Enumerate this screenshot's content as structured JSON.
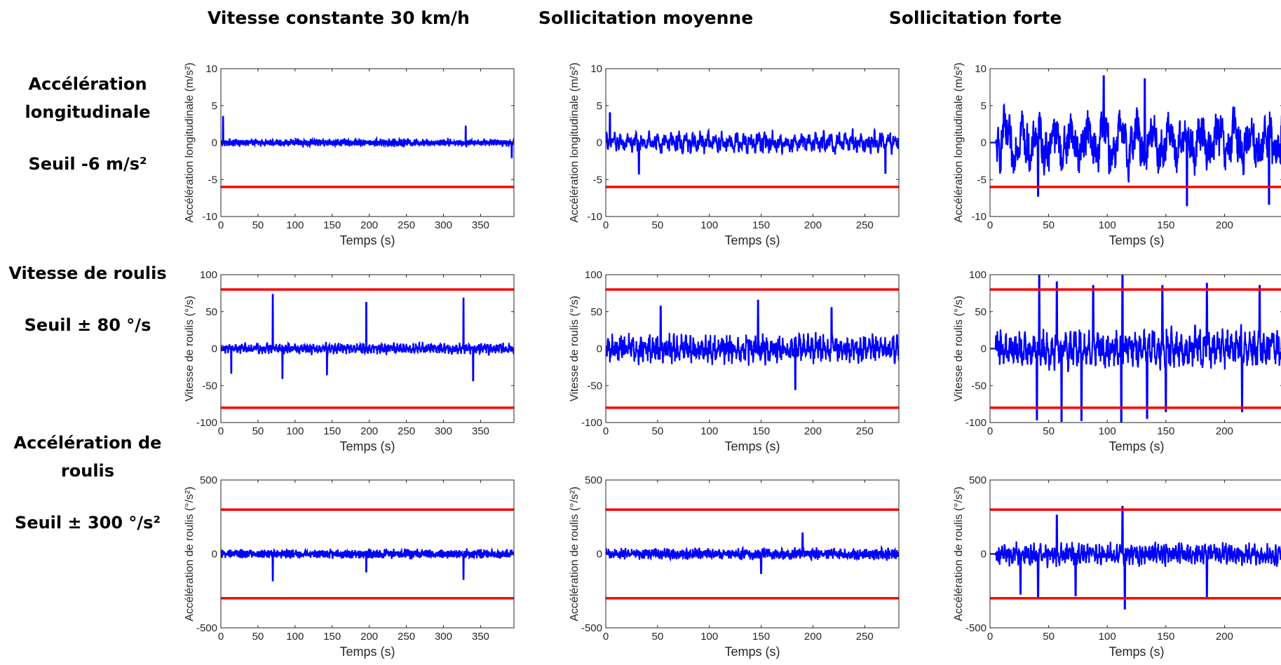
{
  "columns": [
    {
      "title": "Vitesse constante 30 km/h"
    },
    {
      "title": "Sollicitation moyenne"
    },
    {
      "title": "Sollicitation forte"
    }
  ],
  "rows": [
    {
      "label_line1": "Accélération",
      "label_line2": "longitudinale",
      "threshold_text": "Seuil -6 m/s²"
    },
    {
      "label_line1": "Vitesse de roulis",
      "label_line2": "",
      "threshold_text": "Seuil ± 80 °/s"
    },
    {
      "label_line1": "Accélération de",
      "label_line2": "roulis",
      "threshold_text": "Seuil ± 300 °/s²"
    }
  ],
  "colors": {
    "signal": "#0000ff",
    "threshold": "#ff0000",
    "axis": "#262626"
  },
  "chart_data": [
    {
      "id": "acc-long-const",
      "type": "line",
      "xlabel": "Temps (s)",
      "ylabel": "Accélération longitudinale (m/s²)",
      "xlim": [
        0,
        395
      ],
      "ylim": [
        -10,
        10
      ],
      "xticks": [
        0,
        50,
        100,
        150,
        200,
        250,
        300,
        350
      ],
      "yticks": [
        -10,
        -5,
        0,
        5,
        10
      ],
      "thresholds": [
        -6
      ],
      "signal": {
        "duration": 395,
        "amplitude": 0.55,
        "freq": 2.2,
        "spikes": [
          [
            3,
            3.5
          ],
          [
            330,
            2.2
          ],
          [
            392,
            -2
          ]
        ]
      }
    },
    {
      "id": "acc-long-moy",
      "type": "line",
      "xlabel": "Temps (s)",
      "ylabel": "Accélération longitudinale (m/s²)",
      "xlim": [
        0,
        283
      ],
      "ylim": [
        -10,
        10
      ],
      "xticks": [
        0,
        50,
        100,
        150,
        200,
        250
      ],
      "yticks": [
        -10,
        -5,
        0,
        5,
        10
      ],
      "thresholds": [
        -6
      ],
      "signal": {
        "duration": 283,
        "amplitude": 1.6,
        "freq": 0.9,
        "spikes": [
          [
            4,
            4
          ],
          [
            32,
            -4.2
          ],
          [
            270,
            -4.1
          ]
        ]
      }
    },
    {
      "id": "acc-long-forte",
      "type": "line",
      "xlabel": "Temps (s)",
      "ylabel": "Accélération longitudinale (m/s²)",
      "xlim": [
        0,
        250
      ],
      "ylim": [
        -10,
        10
      ],
      "xticks": [
        0,
        50,
        100,
        150,
        200
      ],
      "yticks": [
        -10,
        -5,
        0,
        5,
        10
      ],
      "thresholds": [
        -6
      ],
      "signal": {
        "duration": 250,
        "amplitude": 4.5,
        "freq": 0.45,
        "start": 5,
        "spikes": [
          [
            97,
            9
          ],
          [
            41,
            -7.2
          ],
          [
            168,
            -8.5
          ],
          [
            238,
            -8.3
          ],
          [
            132,
            8.6
          ]
        ]
      }
    },
    {
      "id": "roll-rate-const",
      "type": "line",
      "xlabel": "Temps (s)",
      "ylabel": "Vitesse de roulis (°/s)",
      "xlim": [
        0,
        395
      ],
      "ylim": [
        -100,
        100
      ],
      "xticks": [
        0,
        50,
        100,
        150,
        200,
        250,
        300,
        350
      ],
      "yticks": [
        -100,
        -50,
        0,
        50,
        100
      ],
      "thresholds": [
        80,
        -80
      ],
      "signal": {
        "duration": 395,
        "amplitude": 8,
        "freq": 1.5,
        "spikes": [
          [
            70,
            73
          ],
          [
            196,
            62
          ],
          [
            327,
            68
          ],
          [
            83,
            -40
          ],
          [
            340,
            -43
          ],
          [
            14,
            -33
          ],
          [
            143,
            -35
          ]
        ]
      }
    },
    {
      "id": "roll-rate-moy",
      "type": "line",
      "xlabel": "Temps (s)",
      "ylabel": "Vitesse de roulis (°/s)",
      "xlim": [
        0,
        283
      ],
      "ylim": [
        -100,
        100
      ],
      "xticks": [
        0,
        50,
        100,
        150,
        200,
        250
      ],
      "yticks": [
        -100,
        -50,
        0,
        50,
        100
      ],
      "thresholds": [
        80,
        -80
      ],
      "signal": {
        "duration": 283,
        "amplitude": 22,
        "freq": 1.6,
        "spikes": [
          [
            147,
            65
          ],
          [
            183,
            -55
          ],
          [
            53,
            57
          ],
          [
            218,
            55
          ]
        ]
      }
    },
    {
      "id": "roll-rate-forte",
      "type": "line",
      "xlabel": "Temps (s)",
      "ylabel": "Vitesse de roulis (°/s)",
      "xlim": [
        0,
        250
      ],
      "ylim": [
        -100,
        100
      ],
      "xticks": [
        0,
        50,
        100,
        150,
        200
      ],
      "yticks": [
        -100,
        -50,
        0,
        50,
        100
      ],
      "thresholds": [
        80,
        -80
      ],
      "signal": {
        "duration": 250,
        "amplitude": 30,
        "freq": 1.6,
        "start": 5,
        "spikes": [
          [
            42,
            100
          ],
          [
            113,
            100
          ],
          [
            57,
            90
          ],
          [
            88,
            85
          ],
          [
            147,
            85
          ],
          [
            185,
            88
          ],
          [
            230,
            85
          ],
          [
            40,
            -96
          ],
          [
            61,
            -98
          ],
          [
            78,
            -97
          ],
          [
            112,
            -99
          ],
          [
            134,
            -94
          ],
          [
            150,
            -85
          ],
          [
            215,
            -85
          ]
        ]
      }
    },
    {
      "id": "roll-acc-const",
      "type": "line",
      "xlabel": "Temps (s)",
      "ylabel": "Accélération de roulis (°/s²)",
      "xlim": [
        0,
        395
      ],
      "ylim": [
        -500,
        500
      ],
      "xticks": [
        0,
        50,
        100,
        150,
        200,
        250,
        300,
        350
      ],
      "yticks": [
        -500,
        0,
        500
      ],
      "thresholds": [
        300,
        -300
      ],
      "signal": {
        "duration": 395,
        "amplitude": 35,
        "freq": 3,
        "spikes": [
          [
            70,
            130
          ],
          [
            196,
            150
          ],
          [
            327,
            140
          ],
          [
            70,
            -180
          ],
          [
            196,
            -120
          ],
          [
            327,
            -170
          ]
        ]
      }
    },
    {
      "id": "roll-acc-moy",
      "type": "line",
      "xlabel": "Temps (s)",
      "ylabel": "Accélération de roulis (°/s²)",
      "xlim": [
        0,
        283
      ],
      "ylim": [
        -500,
        500
      ],
      "xticks": [
        0,
        50,
        100,
        150,
        200,
        250
      ],
      "yticks": [
        -500,
        0,
        500
      ],
      "thresholds": [
        300,
        -300
      ],
      "signal": {
        "duration": 283,
        "amplitude": 45,
        "freq": 3,
        "spikes": [
          [
            190,
            140
          ],
          [
            150,
            -130
          ]
        ]
      }
    },
    {
      "id": "roll-acc-forte",
      "type": "line",
      "xlabel": "Temps (s)",
      "ylabel": "Accélération de roulis (°/s²)",
      "xlim": [
        0,
        250
      ],
      "ylim": [
        -500,
        500
      ],
      "xticks": [
        0,
        50,
        100,
        150,
        200
      ],
      "yticks": [
        -500,
        0,
        500
      ],
      "thresholds": [
        300,
        -300
      ],
      "signal": {
        "duration": 250,
        "amplitude": 90,
        "freq": 2.5,
        "start": 5,
        "spikes": [
          [
            41,
            310
          ],
          [
            113,
            320
          ],
          [
            57,
            260
          ],
          [
            26,
            -270
          ],
          [
            41,
            -300
          ],
          [
            115,
            -370
          ],
          [
            73,
            -280
          ],
          [
            185,
            -290
          ]
        ]
      }
    }
  ]
}
